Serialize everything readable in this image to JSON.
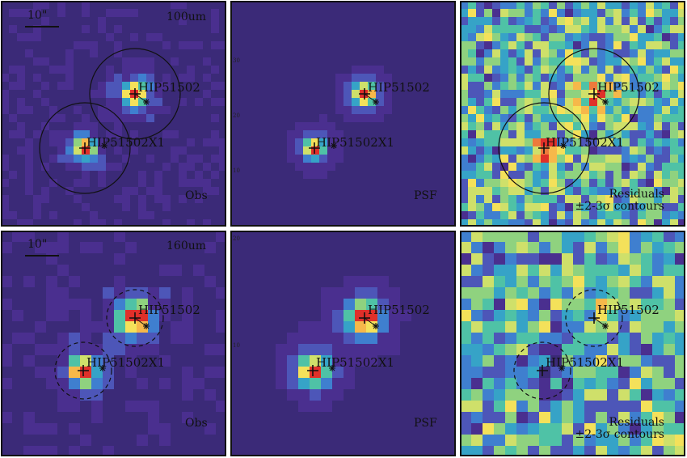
{
  "scale_label": "10\"",
  "rows": [
    {
      "band": "100um",
      "circle_style": "solid",
      "panels": [
        {
          "kind": "obs",
          "label": "Obs",
          "seed": 11
        },
        {
          "kind": "psf",
          "label": "PSF",
          "seed": 23
        },
        {
          "kind": "res",
          "label_line1": "Residuals",
          "label_line2": "±2-3σ contours",
          "seed": 37
        }
      ]
    },
    {
      "band": "160um",
      "circle_style": "dashed",
      "panels": [
        {
          "kind": "obs",
          "label": "Obs",
          "seed": 51
        },
        {
          "kind": "psf",
          "label": "PSF",
          "seed": 67
        },
        {
          "kind": "res",
          "label_line1": "Residuals",
          "label_line2": "±2-3σ contours",
          "seed": 83
        }
      ]
    }
  ],
  "sources": {
    "primary": "HIP51502",
    "secondary": "HIP51502X1"
  },
  "axis_ticks_row1": [
    "30",
    "20",
    "10"
  ],
  "axis_ticks_row2": [
    "20",
    "10"
  ],
  "colormap": [
    "#3b2a78",
    "#4a2f8f",
    "#4d56b8",
    "#3f7fcf",
    "#36a3c7",
    "#4fc2a6",
    "#8fd27f",
    "#cfe06a",
    "#f4e15a",
    "#f6b84a",
    "#ee7a3c",
    "#e0302a"
  ]
}
